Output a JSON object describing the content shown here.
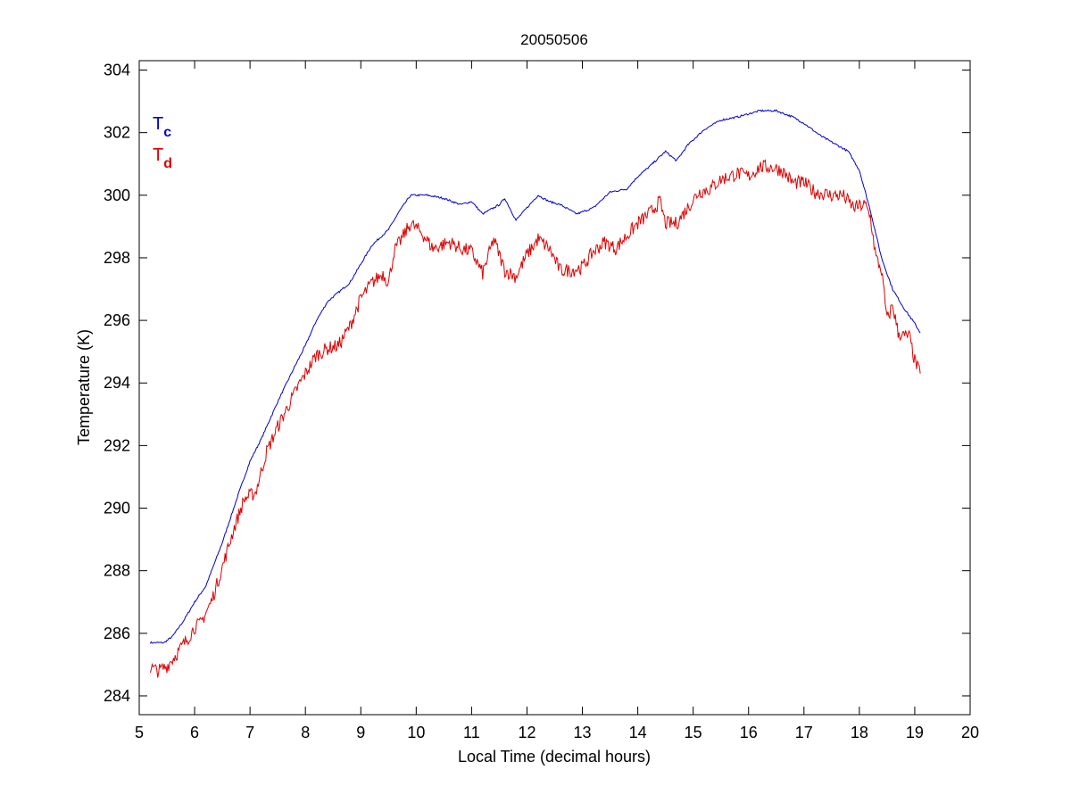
{
  "chart_data": {
    "type": "line",
    "title": "20050506",
    "xlabel": "Local Time (decimal hours)",
    "ylabel": "Temperature (K)",
    "xlim": [
      5,
      20
    ],
    "ylim": [
      283.4,
      304.3
    ],
    "xticks": [
      5,
      6,
      7,
      8,
      9,
      10,
      11,
      12,
      13,
      14,
      15,
      16,
      17,
      18,
      19,
      20
    ],
    "yticks": [
      284,
      286,
      288,
      290,
      292,
      294,
      296,
      298,
      300,
      302,
      304
    ],
    "grid": false,
    "legend_position": "top-left",
    "series": [
      {
        "name": "Tc",
        "label_main": "T",
        "label_sub": "c",
        "color": "#0000cc",
        "x": [
          5.2,
          5.45,
          5.6,
          5.8,
          6.0,
          6.2,
          6.5,
          6.8,
          7.0,
          7.2,
          7.5,
          7.8,
          8.0,
          8.2,
          8.4,
          8.6,
          8.8,
          9.0,
          9.2,
          9.5,
          9.7,
          9.9,
          10.2,
          10.5,
          10.8,
          11.0,
          11.2,
          11.5,
          11.6,
          11.8,
          12.0,
          12.2,
          12.4,
          12.6,
          12.9,
          13.2,
          13.5,
          13.8,
          14.0,
          14.2,
          14.5,
          14.7,
          14.9,
          15.2,
          15.5,
          15.8,
          16.0,
          16.2,
          16.5,
          16.8,
          17.0,
          17.3,
          17.6,
          17.8,
          18.0,
          18.2,
          18.4,
          18.6,
          18.8,
          19.0,
          19.1
        ],
        "y": [
          285.7,
          285.7,
          285.9,
          286.4,
          287.0,
          287.5,
          288.9,
          290.5,
          291.5,
          292.2,
          293.4,
          294.5,
          295.2,
          296.0,
          296.6,
          296.9,
          297.2,
          297.8,
          298.4,
          298.9,
          299.5,
          300.0,
          300.0,
          299.9,
          299.7,
          299.8,
          299.4,
          299.7,
          299.9,
          299.2,
          299.6,
          300.0,
          299.8,
          299.7,
          299.4,
          299.6,
          300.1,
          300.2,
          300.6,
          300.9,
          301.4,
          301.1,
          301.6,
          302.1,
          302.4,
          302.5,
          302.6,
          302.7,
          302.7,
          302.5,
          302.3,
          301.9,
          301.6,
          301.4,
          300.8,
          299.5,
          298.0,
          297.0,
          296.4,
          295.9,
          295.6
        ]
      },
      {
        "name": "Td",
        "label_main": "T",
        "label_sub": "d",
        "color": "#dd0000",
        "x": [
          5.2,
          5.35,
          5.5,
          5.7,
          5.9,
          6.0,
          6.1,
          6.3,
          6.5,
          6.7,
          6.9,
          7.0,
          7.1,
          7.3,
          7.5,
          7.7,
          7.9,
          8.0,
          8.2,
          8.4,
          8.6,
          8.8,
          9.0,
          9.2,
          9.4,
          9.5,
          9.6,
          9.8,
          9.9,
          10.1,
          10.3,
          10.6,
          10.8,
          11.0,
          11.2,
          11.4,
          11.6,
          11.8,
          12.0,
          12.2,
          12.4,
          12.6,
          12.8,
          13.0,
          13.2,
          13.4,
          13.6,
          13.8,
          14.0,
          14.2,
          14.4,
          14.5,
          14.7,
          14.9,
          15.1,
          15.3,
          15.5,
          15.8,
          16.0,
          16.2,
          16.4,
          16.6,
          16.8,
          17.0,
          17.2,
          17.5,
          17.7,
          17.9,
          18.1,
          18.2,
          18.3,
          18.4,
          18.5,
          18.6,
          18.7,
          18.8,
          18.9,
          19.0,
          19.1
        ],
        "y": [
          284.9,
          284.8,
          284.95,
          285.4,
          285.9,
          286.2,
          286.3,
          287.0,
          288.1,
          289.3,
          290.3,
          290.4,
          290.5,
          291.8,
          292.6,
          293.3,
          294.0,
          294.3,
          294.9,
          295.1,
          295.2,
          295.8,
          296.7,
          297.2,
          297.5,
          297.2,
          298.2,
          298.8,
          299.1,
          298.8,
          298.3,
          298.5,
          298.3,
          298.2,
          297.5,
          298.6,
          297.6,
          297.4,
          298.1,
          298.6,
          298.3,
          297.6,
          297.6,
          297.7,
          298.2,
          298.5,
          298.3,
          298.7,
          299.1,
          299.4,
          299.8,
          299.1,
          299.1,
          299.6,
          300.1,
          300.2,
          300.5,
          300.7,
          300.6,
          300.9,
          300.9,
          300.8,
          300.4,
          300.4,
          300.1,
          300.0,
          300.0,
          299.6,
          299.7,
          299.3,
          298.0,
          297.6,
          296.0,
          296.5,
          295.6,
          295.5,
          295.5,
          294.7,
          294.3
        ]
      }
    ]
  }
}
